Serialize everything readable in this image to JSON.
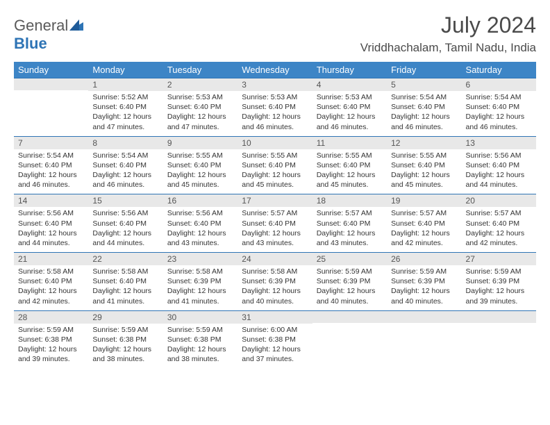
{
  "brand": {
    "part1": "General",
    "part2": "Blue"
  },
  "header": {
    "month_title": "July 2024",
    "location": "Vriddhachalam, Tamil Nadu, India"
  },
  "colors": {
    "header_bg": "#3d85c6",
    "header_text": "#ffffff",
    "daynum_bg": "#e8e8e8",
    "border": "#2e74b5",
    "body_text": "#333333",
    "title_text": "#4a4a4a"
  },
  "day_headers": [
    "Sunday",
    "Monday",
    "Tuesday",
    "Wednesday",
    "Thursday",
    "Friday",
    "Saturday"
  ],
  "weeks": [
    [
      {
        "n": "",
        "sr": "",
        "ss": "",
        "dl": ""
      },
      {
        "n": "1",
        "sr": "5:52 AM",
        "ss": "6:40 PM",
        "dl": "12 hours and 47 minutes."
      },
      {
        "n": "2",
        "sr": "5:53 AM",
        "ss": "6:40 PM",
        "dl": "12 hours and 47 minutes."
      },
      {
        "n": "3",
        "sr": "5:53 AM",
        "ss": "6:40 PM",
        "dl": "12 hours and 46 minutes."
      },
      {
        "n": "4",
        "sr": "5:53 AM",
        "ss": "6:40 PM",
        "dl": "12 hours and 46 minutes."
      },
      {
        "n": "5",
        "sr": "5:54 AM",
        "ss": "6:40 PM",
        "dl": "12 hours and 46 minutes."
      },
      {
        "n": "6",
        "sr": "5:54 AM",
        "ss": "6:40 PM",
        "dl": "12 hours and 46 minutes."
      }
    ],
    [
      {
        "n": "7",
        "sr": "5:54 AM",
        "ss": "6:40 PM",
        "dl": "12 hours and 46 minutes."
      },
      {
        "n": "8",
        "sr": "5:54 AM",
        "ss": "6:40 PM",
        "dl": "12 hours and 46 minutes."
      },
      {
        "n": "9",
        "sr": "5:55 AM",
        "ss": "6:40 PM",
        "dl": "12 hours and 45 minutes."
      },
      {
        "n": "10",
        "sr": "5:55 AM",
        "ss": "6:40 PM",
        "dl": "12 hours and 45 minutes."
      },
      {
        "n": "11",
        "sr": "5:55 AM",
        "ss": "6:40 PM",
        "dl": "12 hours and 45 minutes."
      },
      {
        "n": "12",
        "sr": "5:55 AM",
        "ss": "6:40 PM",
        "dl": "12 hours and 45 minutes."
      },
      {
        "n": "13",
        "sr": "5:56 AM",
        "ss": "6:40 PM",
        "dl": "12 hours and 44 minutes."
      }
    ],
    [
      {
        "n": "14",
        "sr": "5:56 AM",
        "ss": "6:40 PM",
        "dl": "12 hours and 44 minutes."
      },
      {
        "n": "15",
        "sr": "5:56 AM",
        "ss": "6:40 PM",
        "dl": "12 hours and 44 minutes."
      },
      {
        "n": "16",
        "sr": "5:56 AM",
        "ss": "6:40 PM",
        "dl": "12 hours and 43 minutes."
      },
      {
        "n": "17",
        "sr": "5:57 AM",
        "ss": "6:40 PM",
        "dl": "12 hours and 43 minutes."
      },
      {
        "n": "18",
        "sr": "5:57 AM",
        "ss": "6:40 PM",
        "dl": "12 hours and 43 minutes."
      },
      {
        "n": "19",
        "sr": "5:57 AM",
        "ss": "6:40 PM",
        "dl": "12 hours and 42 minutes."
      },
      {
        "n": "20",
        "sr": "5:57 AM",
        "ss": "6:40 PM",
        "dl": "12 hours and 42 minutes."
      }
    ],
    [
      {
        "n": "21",
        "sr": "5:58 AM",
        "ss": "6:40 PM",
        "dl": "12 hours and 42 minutes."
      },
      {
        "n": "22",
        "sr": "5:58 AM",
        "ss": "6:40 PM",
        "dl": "12 hours and 41 minutes."
      },
      {
        "n": "23",
        "sr": "5:58 AM",
        "ss": "6:39 PM",
        "dl": "12 hours and 41 minutes."
      },
      {
        "n": "24",
        "sr": "5:58 AM",
        "ss": "6:39 PM",
        "dl": "12 hours and 40 minutes."
      },
      {
        "n": "25",
        "sr": "5:59 AM",
        "ss": "6:39 PM",
        "dl": "12 hours and 40 minutes."
      },
      {
        "n": "26",
        "sr": "5:59 AM",
        "ss": "6:39 PM",
        "dl": "12 hours and 40 minutes."
      },
      {
        "n": "27",
        "sr": "5:59 AM",
        "ss": "6:39 PM",
        "dl": "12 hours and 39 minutes."
      }
    ],
    [
      {
        "n": "28",
        "sr": "5:59 AM",
        "ss": "6:38 PM",
        "dl": "12 hours and 39 minutes."
      },
      {
        "n": "29",
        "sr": "5:59 AM",
        "ss": "6:38 PM",
        "dl": "12 hours and 38 minutes."
      },
      {
        "n": "30",
        "sr": "5:59 AM",
        "ss": "6:38 PM",
        "dl": "12 hours and 38 minutes."
      },
      {
        "n": "31",
        "sr": "6:00 AM",
        "ss": "6:38 PM",
        "dl": "12 hours and 37 minutes."
      },
      {
        "n": "",
        "sr": "",
        "ss": "",
        "dl": ""
      },
      {
        "n": "",
        "sr": "",
        "ss": "",
        "dl": ""
      },
      {
        "n": "",
        "sr": "",
        "ss": "",
        "dl": ""
      }
    ]
  ],
  "labels": {
    "sunrise": "Sunrise:",
    "sunset": "Sunset:",
    "daylight": "Daylight:"
  }
}
